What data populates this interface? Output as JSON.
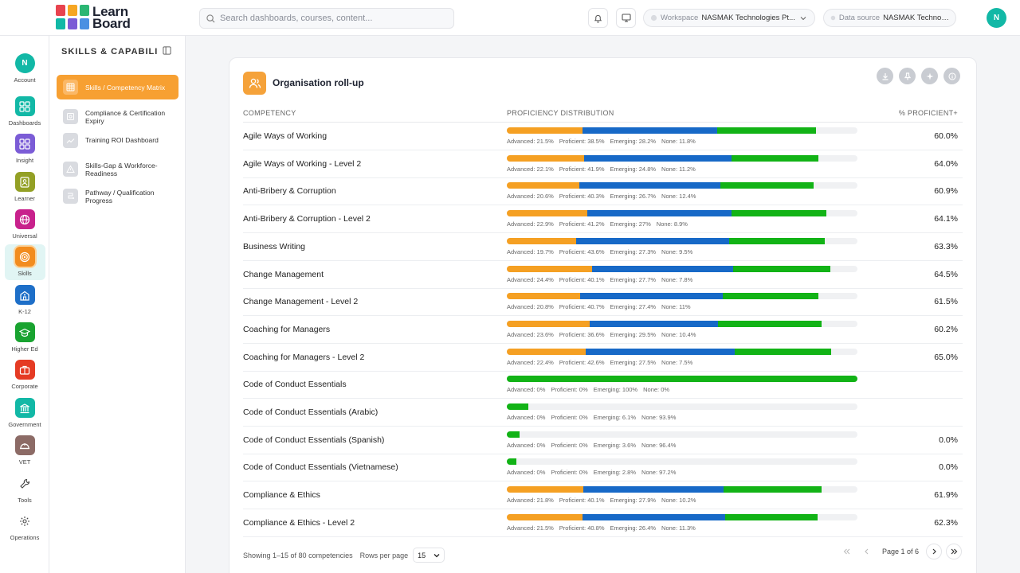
{
  "brand": {
    "line1": "Learn",
    "line2": "Board",
    "logo_colors": [
      "#e8434f",
      "#f6a623",
      "#2bb673",
      "#4a90e2",
      "#7b5cd6",
      "#12b8a6"
    ]
  },
  "search": {
    "placeholder": "Search dashboards, courses, content..."
  },
  "topbar": {
    "workspace_label": "Workspace",
    "workspace_value": "NASMAK Technologies Pt...",
    "datasource_label": "Data source",
    "datasource_value": "NASMAK Technologies ...",
    "avatar": "N"
  },
  "rail": [
    {
      "label": "Account",
      "letter": "N",
      "color": "#12b8a6",
      "icon": "avatar-icon"
    },
    {
      "label": "Dashboards",
      "color": "#12b8a6",
      "icon": "dashboards-icon"
    },
    {
      "label": "Insight",
      "color": "#7b5cd6",
      "icon": "insight-icon"
    },
    {
      "label": "Learner",
      "color": "#93a025",
      "icon": "learner-icon"
    },
    {
      "label": "Universal",
      "color": "#c8218c",
      "icon": "globe-icon"
    },
    {
      "label": "Skills",
      "color": "#f28c1e",
      "icon": "target-icon"
    },
    {
      "label": "K-12",
      "color": "#1e6fc8",
      "icon": "school-icon"
    },
    {
      "label": "Higher Ed",
      "color": "#19a330",
      "icon": "graduation-cap-icon"
    },
    {
      "label": "Corporate",
      "color": "#e53b24",
      "icon": "briefcase-icon"
    },
    {
      "label": "Government",
      "color": "#12b8a6",
      "icon": "government-icon"
    },
    {
      "label": "VET",
      "color": "#8c6b66",
      "icon": "hardhat-icon"
    },
    {
      "label": "Tools",
      "color": "",
      "icon": "wrench-icon"
    },
    {
      "label": "Operations",
      "color": "",
      "icon": "gear-icon"
    }
  ],
  "sidebar": {
    "title": "SKILLS & CAPABILI...",
    "items": [
      {
        "line1": "Skills / Competency Matrix",
        "line2": "",
        "icon": "grid-icon"
      },
      {
        "line1": "Compliance & Certification",
        "line2": "Expiry",
        "icon": "certificate-icon"
      },
      {
        "line1": "Training ROI Dashboard",
        "line2": "",
        "icon": "trend-icon"
      },
      {
        "line1": "Skills-Gap & Workforce-",
        "line2": "Readiness",
        "icon": "warning-icon"
      },
      {
        "line1": "Pathway / Qualification",
        "line2": "Progress",
        "icon": "pathway-icon"
      }
    ]
  },
  "card": {
    "title": "Organisation roll-up",
    "columns": {
      "competency": "COMPETENCY",
      "distribution": "PROFICIENCY DISTRIBUTION",
      "percent": "% PROFICIENT+"
    },
    "legend_labels": {
      "advanced": "Advanced:",
      "proficient": "Proficient:",
      "emerging": "Emerging:",
      "none": "None:"
    },
    "colors": {
      "advanced": "#f5a023",
      "proficient": "#1769c7",
      "emerging": "#12b316",
      "none": "#f0f1f3"
    },
    "rows": [
      {
        "name": "Agile Ways of Working",
        "advanced": 21.5,
        "proficient": 38.5,
        "emerging": 28.2,
        "none": 11.8,
        "pct": "60.0%"
      },
      {
        "name": "Agile Ways of Working - Level 2",
        "advanced": 22.1,
        "proficient": 41.9,
        "emerging": 24.8,
        "none": 11.2,
        "pct": "64.0%"
      },
      {
        "name": "Anti-Bribery & Corruption",
        "advanced": 20.6,
        "proficient": 40.3,
        "emerging": 26.7,
        "none": 12.4,
        "pct": "60.9%"
      },
      {
        "name": "Anti-Bribery & Corruption - Level 2",
        "advanced": 22.9,
        "proficient": 41.2,
        "emerging": 27,
        "none": 8.9,
        "pct": "64.1%"
      },
      {
        "name": "Business Writing",
        "advanced": 19.7,
        "proficient": 43.6,
        "emerging": 27.3,
        "none": 9.5,
        "pct": "63.3%"
      },
      {
        "name": "Change Management",
        "advanced": 24.4,
        "proficient": 40.1,
        "emerging": 27.7,
        "none": 7.8,
        "pct": "64.5%"
      },
      {
        "name": "Change Management - Level 2",
        "advanced": 20.8,
        "proficient": 40.7,
        "emerging": 27.4,
        "none": 11,
        "pct": "61.5%"
      },
      {
        "name": "Coaching for Managers",
        "advanced": 23.6,
        "proficient": 36.6,
        "emerging": 29.5,
        "none": 10.4,
        "pct": "60.2%"
      },
      {
        "name": "Coaching for Managers - Level 2",
        "advanced": 22.4,
        "proficient": 42.6,
        "emerging": 27.5,
        "none": 7.5,
        "pct": "65.0%"
      },
      {
        "name": "Code of Conduct Essentials",
        "advanced": 0,
        "proficient": 0,
        "emerging": 100,
        "none": 0,
        "pct": ""
      },
      {
        "name": "Code of Conduct Essentials (Arabic)",
        "advanced": 0,
        "proficient": 0,
        "emerging": 6.1,
        "none": 93.9,
        "pct": ""
      },
      {
        "name": "Code of Conduct Essentials (Spanish)",
        "advanced": 0,
        "proficient": 0,
        "emerging": 3.6,
        "none": 96.4,
        "pct": "0.0%"
      },
      {
        "name": "Code of Conduct Essentials (Vietnamese)",
        "advanced": 0,
        "proficient": 0,
        "emerging": 2.8,
        "none": 97.2,
        "pct": "0.0%"
      },
      {
        "name": "Compliance & Ethics",
        "advanced": 21.8,
        "proficient": 40.1,
        "emerging": 27.9,
        "none": 10.2,
        "pct": "61.9%"
      },
      {
        "name": "Compliance & Ethics - Level 2",
        "advanced": 21.5,
        "proficient": 40.8,
        "emerging": 26.4,
        "none": 11.3,
        "pct": "62.3%"
      }
    ],
    "footer": {
      "showing": "Showing 1–15 of 80 competencies",
      "rows_per_page_label": "Rows per page",
      "rows_per_page_value": "15",
      "page_text": "Page 1 of 6"
    }
  }
}
